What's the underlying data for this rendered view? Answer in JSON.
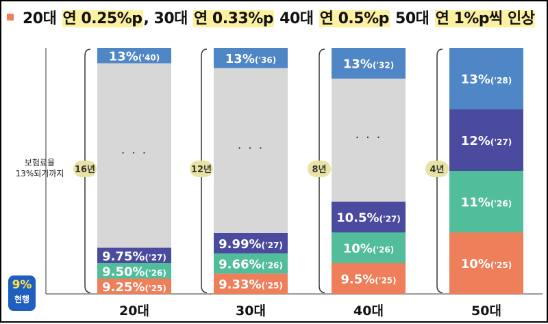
{
  "title": {
    "segments": [
      {
        "text": "20대 ",
        "highlight": false
      },
      {
        "text": "연 0.25%p",
        "highlight": true
      },
      {
        "text": ", 30대 ",
        "highlight": false
      },
      {
        "text": "연 0.33%p",
        "highlight": true
      },
      {
        "text": " 40대 ",
        "highlight": false
      },
      {
        "text": "연 0.5%p",
        "highlight": true
      },
      {
        "text": " 50대 ",
        "highlight": false
      },
      {
        "text": "연 1%p씩 인상",
        "highlight": true
      }
    ]
  },
  "left_label": {
    "line1": "보험료율",
    "line2": "13%되기까지"
  },
  "current_badge": {
    "rate": "9%",
    "label": "현행"
  },
  "colors": {
    "blue": "#4f86c6",
    "gray": "#d7d7d7",
    "indigo": "#4a4a9e",
    "teal": "#52bd9b",
    "orange": "#ee7f5a",
    "bracket_pill": "#e9e3a3",
    "bullet": "#ee7f5a"
  },
  "chart_data": {
    "type": "bar",
    "stacked": true,
    "ylim": [
      9,
      13
    ],
    "categories": [
      "20대",
      "30대",
      "40대",
      "50대"
    ],
    "groups": [
      {
        "category": "20대",
        "years": "16년",
        "steps": [
          {
            "rate": 9.25,
            "label": "9.25%",
            "year": "('25)",
            "color": "orange"
          },
          {
            "rate": 9.5,
            "label": "9.50%",
            "year": "('26)",
            "color": "teal"
          },
          {
            "rate": 9.75,
            "label": "9.75%",
            "year": "('27)",
            "color": "indigo"
          },
          {
            "rate": null,
            "label": "· · ·",
            "year": "",
            "color": "gray"
          },
          {
            "rate": 13,
            "label": "13%",
            "year": "('40)",
            "color": "blue"
          }
        ]
      },
      {
        "category": "30대",
        "years": "12년",
        "steps": [
          {
            "rate": 9.33,
            "label": "9.33%",
            "year": "('25)",
            "color": "orange"
          },
          {
            "rate": 9.66,
            "label": "9.66%",
            "year": "('26)",
            "color": "teal"
          },
          {
            "rate": 9.99,
            "label": "9.99%",
            "year": "('27)",
            "color": "indigo"
          },
          {
            "rate": null,
            "label": "· · ·",
            "year": "",
            "color": "gray"
          },
          {
            "rate": 13,
            "label": "13%",
            "year": "('36)",
            "color": "blue"
          }
        ]
      },
      {
        "category": "40대",
        "years": "8년",
        "steps": [
          {
            "rate": 9.5,
            "label": "9.5%",
            "year": "('25)",
            "color": "orange"
          },
          {
            "rate": 10,
            "label": "10%",
            "year": "('26)",
            "color": "teal"
          },
          {
            "rate": 10.5,
            "label": "10.5%",
            "year": "('27)",
            "color": "indigo"
          },
          {
            "rate": null,
            "label": "· · ·",
            "year": "",
            "color": "gray"
          },
          {
            "rate": 13,
            "label": "13%",
            "year": "('32)",
            "color": "blue"
          }
        ]
      },
      {
        "category": "50대",
        "years": "4년",
        "steps": [
          {
            "rate": 10,
            "label": "10%",
            "year": "('25)",
            "color": "orange"
          },
          {
            "rate": 11,
            "label": "11%",
            "year": "('26)",
            "color": "teal"
          },
          {
            "rate": 12,
            "label": "12%",
            "year": "('27)",
            "color": "indigo"
          },
          {
            "rate": 13,
            "label": "13%",
            "year": "('28)",
            "color": "blue"
          }
        ]
      }
    ]
  }
}
